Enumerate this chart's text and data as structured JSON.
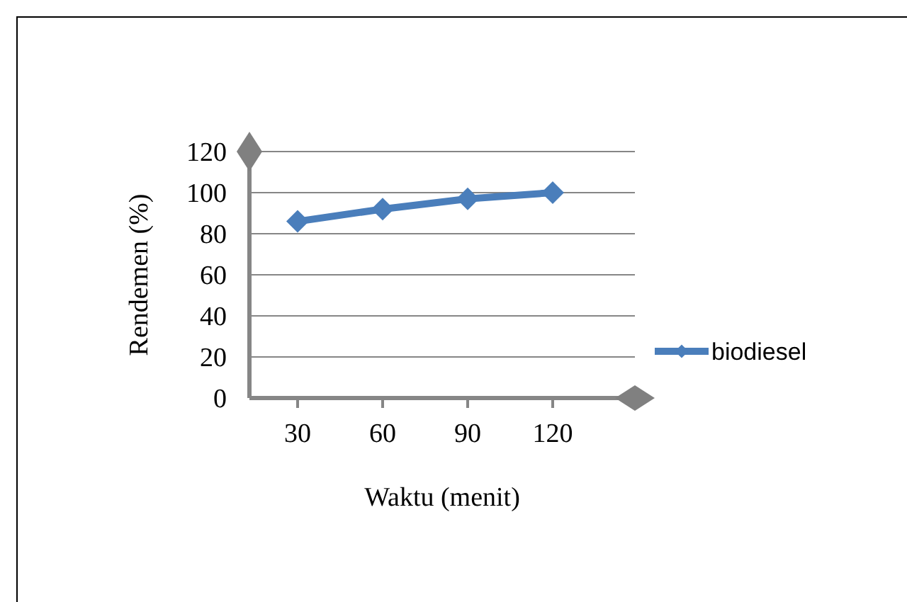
{
  "chart_data": {
    "type": "line",
    "xlabel": "Waktu (menit)",
    "ylabel": "Rendemen (%)",
    "categories": [
      "30",
      "60",
      "90",
      "120"
    ],
    "series": [
      {
        "name": "biodiesel",
        "color": "#4a7ebb",
        "values": [
          86,
          92,
          97,
          100
        ]
      }
    ],
    "ylim": [
      0,
      120
    ],
    "yticks": [
      0,
      20,
      40,
      60,
      80,
      100,
      120
    ],
    "grid": "y",
    "legend": "right",
    "marker": "diamond",
    "line_style": "solid"
  }
}
